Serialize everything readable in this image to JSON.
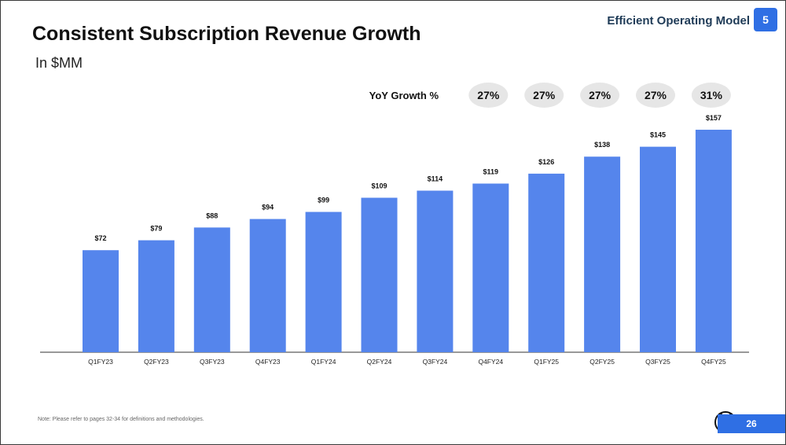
{
  "header": {
    "section_label": "Efficient Operating Model",
    "section_number": "5"
  },
  "title": "Consistent Subscription Revenue Growth",
  "subtitle": "In $MM",
  "chart_data": {
    "type": "bar",
    "categories": [
      "Q1FY23",
      "Q2FY23",
      "Q3FY23",
      "Q4FY23",
      "Q1FY24",
      "Q2FY24",
      "Q3FY24",
      "Q4FY24",
      "Q1FY25",
      "Q2FY25",
      "Q3FY25",
      "Q4FY25"
    ],
    "values": [
      72,
      79,
      88,
      94,
      99,
      109,
      114,
      119,
      126,
      138,
      145,
      157
    ],
    "value_labels": [
      "$72",
      "$79",
      "$88",
      "$94",
      "$99",
      "$109",
      "$114",
      "$119",
      "$126",
      "$138",
      "$145",
      "$157"
    ],
    "bar_color": "#5585ec",
    "ylim": [
      0,
      160
    ],
    "grid": false,
    "growth_label": "YoY Growth %",
    "growth": [
      {
        "category": "Q4FY24",
        "label": "27%"
      },
      {
        "category": "Q1FY25",
        "label": "27%"
      },
      {
        "category": "Q2FY25",
        "label": "27%"
      },
      {
        "category": "Q3FY25",
        "label": "27%"
      },
      {
        "category": "Q4FY25",
        "label": "31%"
      }
    ],
    "growth_bubble_color": "#e6e6e6"
  },
  "footer": {
    "note": "Note:  Please refer to pages 32-34 for definitions and methodologies.",
    "page_number": "26",
    "accent_color": "#2f6fe4"
  }
}
